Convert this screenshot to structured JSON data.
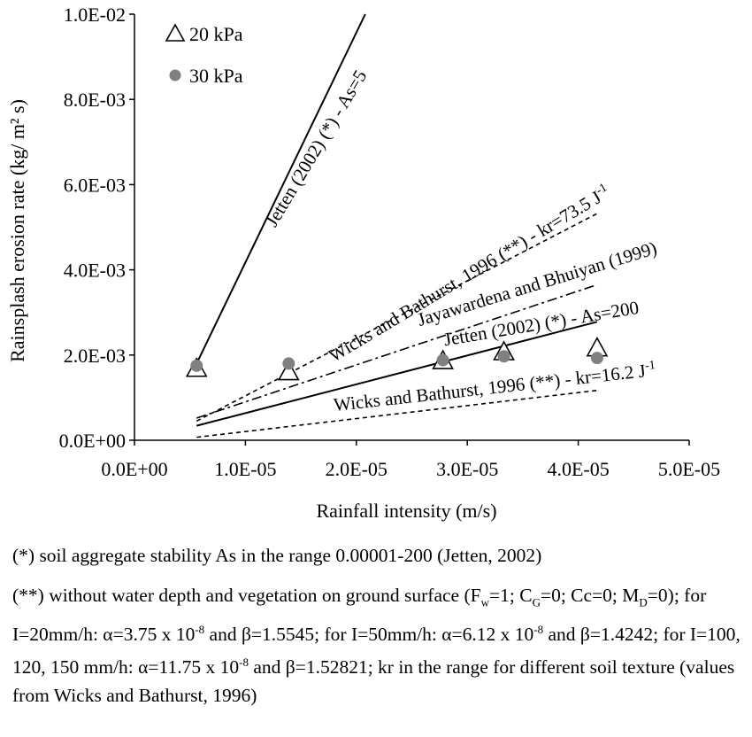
{
  "chart_data": {
    "type": "scatter",
    "ylabel": "Rainsplash erosion rate (kg/ m² s)",
    "xlabel": "Rainfall intensity (m/s)",
    "xlim": [
      0,
      5e-05
    ],
    "ylim": [
      0,
      0.01
    ],
    "x_ticks": [
      "0.0E+00",
      "1.0E-05",
      "2.0E-05",
      "3.0E-05",
      "4.0E-05",
      "5.0E-05"
    ],
    "y_ticks": [
      "0.0E+00",
      "2.0E-03",
      "4.0E-03",
      "6.0E-03",
      "8.0E-03",
      "1.0E-02"
    ],
    "grid": false,
    "legend_position": "top-left",
    "series": [
      {
        "name": "20 kPa",
        "kind": "points",
        "marker": "open-triangle",
        "color": "#000000",
        "points": [
          [
            5.6e-06,
            0.00166
          ],
          [
            1.39e-05,
            0.00158
          ],
          [
            2.78e-05,
            0.00184
          ],
          [
            3.33e-05,
            0.00205
          ],
          [
            4.17e-05,
            0.00214
          ]
        ]
      },
      {
        "name": "30 kPa",
        "kind": "points",
        "marker": "filled-circle",
        "color": "#808080",
        "points": [
          [
            5.6e-06,
            0.00175
          ],
          [
            1.39e-05,
            0.0018
          ],
          [
            2.78e-05,
            0.00188
          ],
          [
            3.33e-05,
            0.00197
          ],
          [
            4.17e-05,
            0.00193
          ]
        ]
      },
      {
        "name": "Jetten (2002) (*) - As=5",
        "kind": "line",
        "style": "solid",
        "points": [
          [
            5.6e-06,
            0.0018
          ],
          [
            2.08e-05,
            0.01
          ]
        ]
      },
      {
        "name": "Wicks and Bathurst, 1996 (**) - kr=73.5 J⁻¹",
        "kind": "line",
        "style": "dashed",
        "points": [
          [
            5.6e-06,
            0.00045
          ],
          [
            4.17e-05,
            0.00532
          ]
        ]
      },
      {
        "name": "Jayawardena and Bhuiyan (1999)",
        "kind": "line",
        "style": "dashdot",
        "points": [
          [
            5.6e-06,
            0.00052
          ],
          [
            4.17e-05,
            0.00365
          ]
        ]
      },
      {
        "name": "Jetten (2002) (*) - As=200",
        "kind": "line",
        "style": "solid",
        "points": [
          [
            5.6e-06,
            0.00034
          ],
          [
            4.17e-05,
            0.00278
          ]
        ]
      },
      {
        "name": "Wicks and Bathurst, 1996 (**) - kr=16.2 J⁻¹",
        "kind": "line",
        "style": "dashed",
        "points": [
          [
            5.6e-06,
            7e-05
          ],
          [
            4.17e-05,
            0.00117
          ]
        ]
      }
    ],
    "legend": [
      "20 kPa",
      "30 kPa"
    ],
    "line_labels": {
      "jetten5": "Jetten (2002) (*) - As=5",
      "wicks735": "Wicks and Bathurst, 1996 (**) - kr=73.5 J",
      "jaya": "Jayawardena and Bhuiyan (1999)",
      "jetten200": "Jetten (2002) (*) - As=200",
      "wicks162": "Wicks and Bathurst, 1996 (**) - kr=16.2 J",
      "exp": "-1"
    }
  },
  "notes": {
    "note1": "(*) soil aggregate stability  As in the range 0.00001-200 (Jetten, 2002)",
    "note2_a": "(**) without water depth and vegetation  on ground surface (F",
    "note2_w": "w",
    "note2_b": "=1; C",
    "note2_g": "G",
    "note2_c": "=0; Cc=0; M",
    "note2_d": "D",
    "note2_e": "=0);  for I=20mm/h:  α=3.75 x 10",
    "note2_exp": "-8",
    "note2_f": " and  β=1.5545;  for I=50mm/h:  α=6.12 x 10",
    "note2_g2": " and  β=1.4242;  for I=100, 120, 150 mm/h:  α=11.75 x 10",
    "note2_h": " and β=1.52821; kr in the range for different  soil texture  (values from Wicks and Bathurst, 1996)"
  }
}
